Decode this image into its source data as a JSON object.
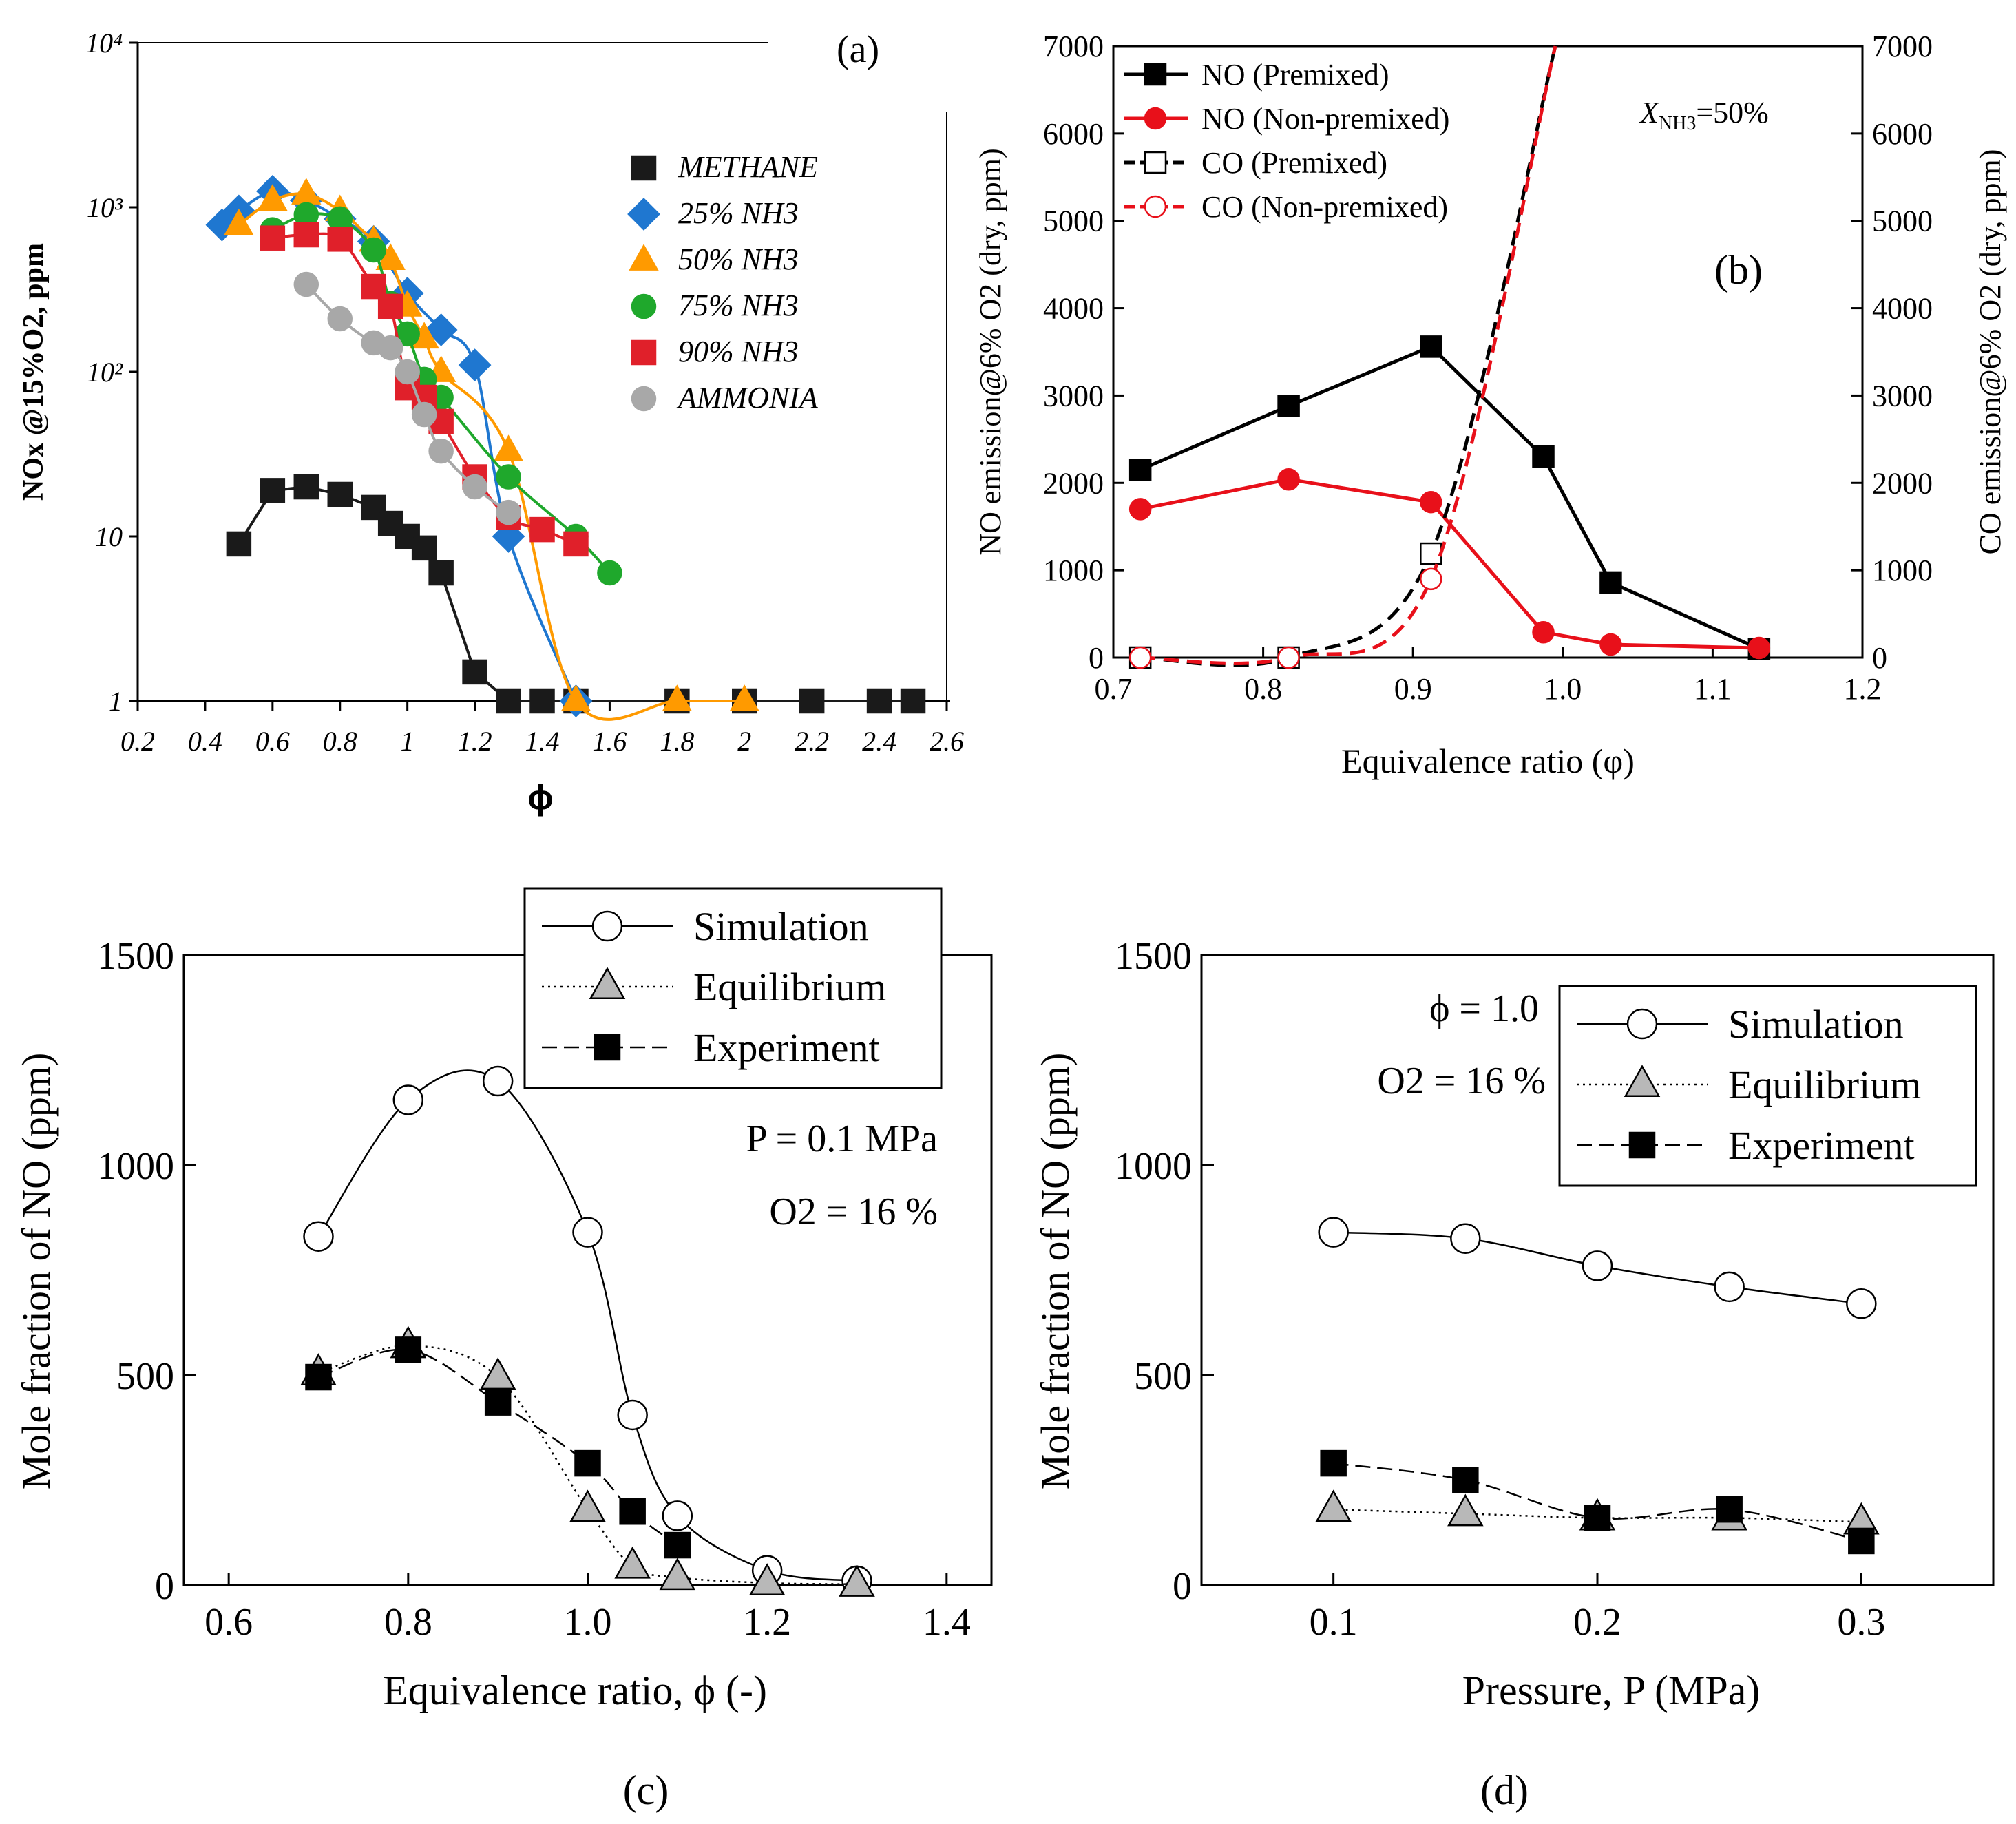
{
  "panels": {
    "a": {
      "label": "(a)"
    },
    "b": {
      "label": "(b)",
      "annotation_prefix": "X",
      "annotation_sub": "NH3",
      "annotation_suffix": "=50%"
    },
    "c": {
      "label": "(c)",
      "condition_1": "P = 0.1 MPa",
      "condition_2": "O2 = 16 %"
    },
    "d": {
      "label": "(d)",
      "condition_1": "ϕ = 1.0",
      "condition_2": "O2 = 16 %"
    }
  },
  "chart_data": [
    {
      "id": "a",
      "type": "line",
      "yscale": "log",
      "xlabel": "ϕ",
      "ylabel": "NOx @15%O2, ppm",
      "xlim": [
        0.2,
        2.6
      ],
      "ylim": [
        1,
        10000
      ],
      "xticks": [
        0.2,
        0.4,
        0.6,
        0.8,
        1,
        1.2,
        1.4,
        1.6,
        1.8,
        2,
        2.2,
        2.4,
        2.6
      ],
      "xtick_labels": [
        "0.2",
        "0.4",
        "0.6",
        "0.8",
        "1",
        "1.2",
        "1.4",
        "1.6",
        "1.8",
        "2",
        "2.2",
        "2.4",
        "2.6"
      ],
      "yticks": [
        1,
        10,
        100,
        1000,
        10000
      ],
      "ytick_labels": [
        "1",
        "10",
        "10²",
        "10³",
        "10⁴"
      ],
      "series": [
        {
          "name": "METHANE",
          "color": "#1a1a1a",
          "marker": "square",
          "x": [
            0.5,
            0.6,
            0.7,
            0.8,
            0.9,
            0.95,
            1.0,
            1.05,
            1.1,
            1.2,
            1.3,
            1.4,
            1.5,
            1.8,
            2.0,
            2.2,
            2.4,
            2.5
          ],
          "y": [
            9,
            19,
            20,
            18,
            15,
            12,
            10,
            8.5,
            6,
            1.5,
            1,
            1,
            1,
            1,
            1,
            1,
            1,
            1
          ]
        },
        {
          "name": "25% NH3",
          "color": "#1f77d0",
          "marker": "diamond",
          "x": [
            0.45,
            0.5,
            0.6,
            0.7,
            0.8,
            0.9,
            1.0,
            1.1,
            1.2,
            1.3,
            1.5
          ],
          "y": [
            780,
            950,
            1250,
            1100,
            850,
            620,
            300,
            180,
            110,
            10,
            1
          ]
        },
        {
          "name": "50% NH3",
          "color": "#ff9a00",
          "marker": "triangle",
          "x": [
            0.5,
            0.6,
            0.7,
            0.8,
            0.9,
            0.95,
            1.0,
            1.05,
            1.1,
            1.3,
            1.5,
            1.8,
            2.0
          ],
          "y": [
            780,
            1100,
            1200,
            950,
            620,
            480,
            250,
            160,
            100,
            33,
            1,
            1,
            1
          ]
        },
        {
          "name": "75% NH3",
          "color": "#1fa82c",
          "marker": "circle",
          "x": [
            0.6,
            0.7,
            0.8,
            0.9,
            0.95,
            1.0,
            1.05,
            1.1,
            1.3,
            1.5,
            1.6
          ],
          "y": [
            730,
            900,
            850,
            550,
            260,
            170,
            90,
            70,
            23,
            10,
            6
          ]
        },
        {
          "name": "90% NH3",
          "color": "#e0202a",
          "marker": "square",
          "x": [
            0.6,
            0.7,
            0.8,
            0.9,
            0.95,
            1.0,
            1.05,
            1.1,
            1.2,
            1.3,
            1.4,
            1.5
          ],
          "y": [
            650,
            680,
            640,
            330,
            250,
            80,
            70,
            50,
            23,
            13,
            11,
            9
          ]
        },
        {
          "name": "AMMONIA",
          "color": "#a8a8a8",
          "marker": "circle",
          "x": [
            0.7,
            0.8,
            0.9,
            0.95,
            1.0,
            1.05,
            1.1,
            1.2,
            1.3
          ],
          "y": [
            340,
            210,
            150,
            140,
            100,
            55,
            33,
            20,
            14
          ]
        }
      ]
    },
    {
      "id": "b",
      "type": "line",
      "xlabel": "Equivalence ratio (φ)",
      "ylabel_left": "NO emission@6% O2 (dry, ppm)",
      "ylabel_right": "CO emission@6% O2 (dry, ppm)",
      "xlim": [
        0.7,
        1.2
      ],
      "ylim": [
        0,
        7000
      ],
      "xticks": [
        0.7,
        0.8,
        0.9,
        1.0,
        1.1,
        1.2
      ],
      "xtick_labels": [
        "0.7",
        "0.8",
        "0.9",
        "1.0",
        "1.1",
        "1.2"
      ],
      "yticks": [
        0,
        1000,
        2000,
        3000,
        4000,
        5000,
        6000,
        7000
      ],
      "ytick_labels": [
        "0",
        "1000",
        "2000",
        "3000",
        "4000",
        "5000",
        "6000",
        "7000"
      ],
      "series": [
        {
          "name": "NO (Premixed)",
          "color": "#000000",
          "marker": "square",
          "filled": true,
          "dash": "solid",
          "x": [
            0.718,
            0.817,
            0.912,
            0.987,
            1.032,
            1.131
          ],
          "y": [
            2150,
            2880,
            3560,
            2300,
            860,
            100
          ]
        },
        {
          "name": "NO (Non-premixed)",
          "color": "#e8101a",
          "marker": "circle",
          "filled": true,
          "dash": "solid",
          "x": [
            0.718,
            0.817,
            0.912,
            0.987,
            1.032,
            1.131
          ],
          "y": [
            1700,
            2040,
            1780,
            290,
            150,
            110
          ]
        },
        {
          "name": "CO (Premixed)",
          "color": "#000000",
          "marker": "square",
          "filled": false,
          "dash": "dashed",
          "x": [
            0.718,
            0.817,
            0.912,
            0.995
          ],
          "y": [
            0,
            0,
            1190,
            7000
          ]
        },
        {
          "name": "CO (Non-premixed)",
          "color": "#e8101a",
          "marker": "circle",
          "filled": false,
          "dash": "dashed",
          "x": [
            0.718,
            0.817,
            0.912,
            0.995
          ],
          "y": [
            0,
            0,
            900,
            7000
          ]
        }
      ]
    },
    {
      "id": "c",
      "type": "line",
      "xlabel": "Equivalence ratio, ϕ (-)",
      "ylabel": "Mole fraction of NO (ppm)",
      "xlim": [
        0.55,
        1.45
      ],
      "ylim": [
        0,
        1500
      ],
      "xticks": [
        0.6,
        0.8,
        1.0,
        1.2,
        1.4
      ],
      "xtick_labels": [
        "0.6",
        "0.8",
        "1.0",
        "1.2",
        "1.4"
      ],
      "yticks": [
        0,
        500,
        1000,
        1500
      ],
      "ytick_labels": [
        "0",
        "500",
        "1000",
        "1500"
      ],
      "series": [
        {
          "name": "Simulation",
          "marker": "circle",
          "dash": "solid",
          "x": [
            0.7,
            0.8,
            0.9,
            1.0,
            1.05,
            1.1,
            1.2,
            1.3
          ],
          "y": [
            830,
            1155,
            1200,
            840,
            405,
            165,
            35,
            10
          ]
        },
        {
          "name": "Equilibrium",
          "marker": "triangle",
          "dash": "dotted",
          "x": [
            0.7,
            0.8,
            0.9,
            1.0,
            1.05,
            1.1,
            1.2,
            1.3
          ],
          "y": [
            505,
            570,
            495,
            180,
            45,
            18,
            5,
            2
          ]
        },
        {
          "name": "Experiment",
          "marker": "square",
          "dash": "dashed",
          "x": [
            0.7,
            0.8,
            0.9,
            1.0,
            1.05,
            1.1
          ],
          "y": [
            495,
            560,
            435,
            290,
            175,
            95
          ]
        }
      ]
    },
    {
      "id": "d",
      "type": "line",
      "xlabel": "Pressure, P (MPa)",
      "ylabel": "Mole fraction of NO (ppm)",
      "xlim": [
        0.05,
        0.35
      ],
      "ylim": [
        0,
        1500
      ],
      "xticks": [
        0.1,
        0.2,
        0.3
      ],
      "xtick_labels": [
        "0.1",
        "0.2",
        "0.3"
      ],
      "yticks": [
        0,
        500,
        1000,
        1500
      ],
      "ytick_labels": [
        "0",
        "500",
        "1000",
        "1500"
      ],
      "series": [
        {
          "name": "Simulation",
          "marker": "circle",
          "dash": "solid",
          "x": [
            0.1,
            0.15,
            0.2,
            0.25,
            0.3
          ],
          "y": [
            840,
            825,
            760,
            710,
            670
          ]
        },
        {
          "name": "Equilibrium",
          "marker": "triangle",
          "dash": "dotted",
          "x": [
            0.1,
            0.15,
            0.2,
            0.25,
            0.3
          ],
          "y": [
            180,
            170,
            160,
            160,
            150
          ]
        },
        {
          "name": "Experiment",
          "marker": "square",
          "dash": "dashed",
          "x": [
            0.1,
            0.15,
            0.2,
            0.25,
            0.3
          ],
          "y": [
            290,
            250,
            160,
            180,
            105
          ]
        }
      ]
    }
  ]
}
